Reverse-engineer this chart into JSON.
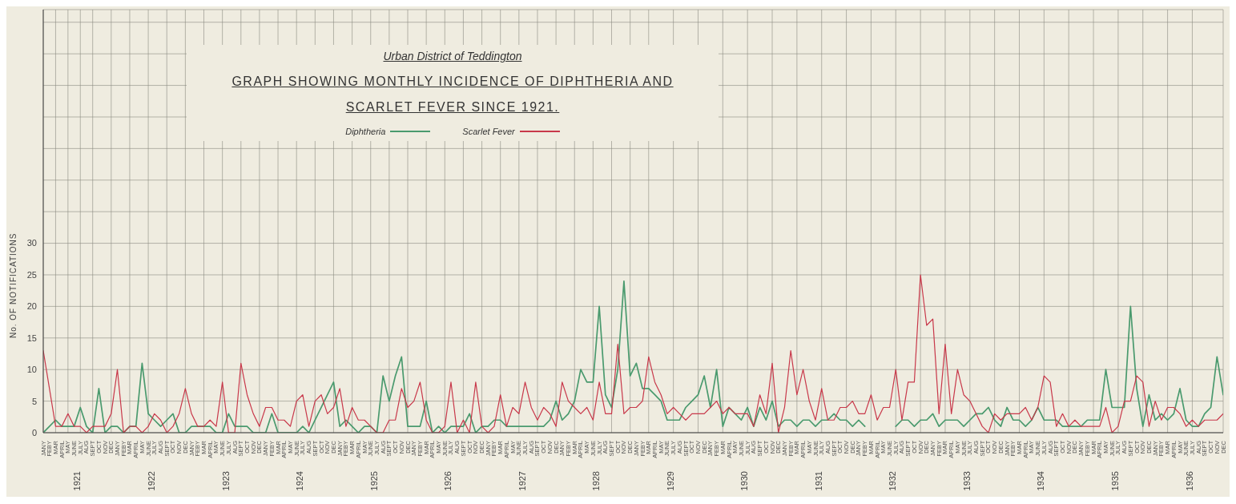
{
  "chart_data": {
    "type": "line",
    "subtitle": "Urban District of Teddington",
    "title": "GRAPH SHOWING MONTHLY INCIDENCE OF DIPHTHERIA AND SCARLET FEVER SINCE 1921.",
    "ylabel": "No. OF NOTIFICATIONS",
    "categories": [
      "JANY",
      "FEBY",
      "MAR",
      "APRIL",
      "MAY",
      "JUNE",
      "JULY",
      "AUG",
      "SEPT",
      "OCT",
      "NOV",
      "DEC",
      "JANY",
      "FEBY",
      "MAR",
      "APRIL",
      "MAY",
      "JUNE",
      "JULY",
      "AUG",
      "SEPT",
      "OCT",
      "NOV",
      "DEC",
      "JANY",
      "FEBY",
      "MAR",
      "APRIL",
      "MAY",
      "JUNE",
      "JULY",
      "AUG",
      "SEPT",
      "OCT",
      "NOV",
      "DEC",
      "JANY",
      "FEBY",
      "MAR",
      "APRIL",
      "MAY",
      "JUNE",
      "JULY",
      "AUG",
      "SEPT",
      "OCT",
      "NOV",
      "DEC",
      "JANY",
      "FEBY",
      "MAR",
      "APRIL",
      "MAY",
      "JUNE",
      "JULY",
      "AUG",
      "SEPT",
      "OCT",
      "NOV",
      "DEC",
      "JANY",
      "FEBY",
      "MAR",
      "APRIL",
      "MAY",
      "JUNE",
      "JULY",
      "AUG",
      "SEPT",
      "OCT",
      "NOV",
      "DEC",
      "JANY",
      "FEBY",
      "MAR",
      "APRIL",
      "MAY",
      "JUNE",
      "JULY",
      "AUG",
      "SEPT",
      "OCT",
      "NOV",
      "DEC",
      "JANY",
      "FEBY",
      "MAR",
      "APRIL",
      "MAY",
      "JUNE",
      "JULY",
      "AUG",
      "SEPT",
      "OCT",
      "NOV",
      "DEC",
      "JANY",
      "FEBY",
      "MAR",
      "APRIL",
      "MAY",
      "JUNE",
      "JULY",
      "AUG",
      "SEPT",
      "OCT",
      "NOV",
      "DEC",
      "JANY",
      "FEBY",
      "MAR",
      "APRIL",
      "MAY",
      "JUNE",
      "JULY",
      "AUG",
      "SEPT",
      "OCT",
      "NOV",
      "DEC",
      "JANY",
      "FEBY",
      "MAR",
      "APRIL",
      "MAY",
      "JUNE",
      "JULY",
      "AUG",
      "SEPT",
      "OCT",
      "NOV",
      "DEC",
      "JANY",
      "FEBY",
      "MAR",
      "APRIL",
      "MAY",
      "JUNE",
      "JULY",
      "AUG",
      "SEPT",
      "OCT",
      "NOV",
      "DEC",
      "JANY",
      "FEBY",
      "MAR",
      "APRIL",
      "MAY",
      "JUNE",
      "JULY",
      "AUG",
      "SEPT",
      "OCT",
      "NOV",
      "DEC",
      "JANY",
      "FEBY",
      "MAR",
      "APRIL",
      "MAY",
      "JUNE",
      "JULY",
      "AUG",
      "SEPT",
      "OCT",
      "NOV",
      "DEC",
      "JANY",
      "FEBY",
      "MAR",
      "APRIL",
      "MAY",
      "JUNE",
      "JULY",
      "AUG",
      "SEPT",
      "OCT",
      "NOV",
      "DEC",
      "JANY",
      "FEBY",
      "MAR",
      "APRIL",
      "MAY",
      "JUNE",
      "JULY",
      "AUG",
      "SEPT",
      "OCT",
      "NOV",
      "DEC"
    ],
    "annotations": [
      "1921",
      "1922",
      "1923",
      "1924",
      "1925",
      "1926",
      "1927",
      "1928",
      "1929",
      "1930",
      "1931",
      "1932",
      "1933",
      "1934",
      "1935",
      "1936"
    ],
    "series": [
      {
        "name": "Diphtheria",
        "color": "#4a9a6e",
        "values": [
          0,
          1,
          2,
          1,
          1,
          1,
          4,
          1,
          0,
          7,
          0,
          1,
          1,
          0,
          1,
          1,
          11,
          3,
          2,
          1,
          2,
          3,
          0,
          0,
          1,
          1,
          1,
          1,
          0,
          0,
          3,
          1,
          1,
          1,
          0,
          0,
          0,
          3,
          0,
          0,
          0,
          0,
          1,
          0,
          2,
          4,
          6,
          8,
          1,
          2,
          1,
          0,
          1,
          1,
          0,
          9,
          5,
          9,
          12,
          1,
          1,
          1,
          5,
          0,
          1,
          0,
          1,
          1,
          1,
          3,
          0,
          1,
          1,
          2,
          2,
          1,
          1,
          1,
          1,
          1,
          1,
          1,
          2,
          5,
          2,
          3,
          5,
          10,
          8,
          8,
          20,
          6,
          4,
          10,
          24,
          9,
          11,
          7,
          7,
          6,
          5,
          2,
          2,
          2,
          4,
          5,
          6,
          9,
          4,
          10,
          1,
          4,
          3,
          2,
          4,
          1,
          4,
          2,
          5,
          1,
          2,
          2,
          1,
          2,
          2,
          1,
          2,
          2,
          3,
          2,
          2,
          1,
          2,
          1,
          null,
          null,
          null,
          null,
          1,
          2,
          2,
          1,
          2,
          2,
          3,
          1,
          2,
          2,
          2,
          1,
          2,
          3,
          3,
          4,
          2,
          1,
          4,
          2,
          2,
          1,
          2,
          4,
          2,
          2,
          2,
          1,
          1,
          1,
          1,
          2,
          2,
          2,
          10,
          4,
          4,
          4,
          20,
          7,
          1,
          6,
          2,
          3,
          2,
          3,
          7,
          2,
          1,
          1,
          3,
          4,
          12,
          6
        ]
      },
      {
        "name": "Scarlet Fever",
        "color": "#c8384a",
        "values": [
          13,
          7,
          1,
          1,
          3,
          1,
          1,
          0,
          1,
          1,
          1,
          3,
          10,
          0,
          1,
          1,
          0,
          1,
          3,
          2,
          0,
          1,
          3,
          7,
          3,
          1,
          1,
          2,
          1,
          8,
          0,
          0,
          11,
          6,
          3,
          1,
          4,
          4,
          2,
          2,
          1,
          5,
          6,
          1,
          5,
          6,
          3,
          4,
          7,
          1,
          4,
          2,
          2,
          1,
          0,
          0,
          2,
          2,
          7,
          4,
          5,
          8,
          2,
          0,
          0,
          1,
          8,
          0,
          2,
          0,
          8,
          1,
          0,
          1,
          6,
          1,
          4,
          3,
          8,
          4,
          2,
          4,
          3,
          1,
          8,
          5,
          4,
          3,
          4,
          2,
          8,
          3,
          3,
          14,
          3,
          4,
          4,
          5,
          12,
          8,
          6,
          3,
          4,
          3,
          2,
          3,
          3,
          3,
          4,
          5,
          3,
          4,
          3,
          3,
          3,
          1,
          6,
          3,
          11,
          0,
          4,
          13,
          6,
          10,
          5,
          2,
          7,
          2,
          2,
          4,
          4,
          5,
          3,
          3,
          6,
          2,
          4,
          4,
          10,
          2,
          8,
          8,
          25,
          17,
          18,
          3,
          14,
          3,
          10,
          6,
          5,
          3,
          1,
          0,
          3,
          2,
          3,
          3,
          3,
          4,
          2,
          4,
          9,
          8,
          1,
          3,
          1,
          2,
          1,
          1,
          1,
          1,
          4,
          0,
          1,
          5,
          5,
          9,
          8,
          1,
          5,
          2,
          4,
          4,
          3,
          1,
          2,
          1,
          2,
          2,
          2,
          3
        ]
      }
    ],
    "ylim": [
      0,
      67
    ],
    "yticks": [
      0,
      5,
      10,
      15,
      20,
      25,
      30,
      {
        "value": 35,
        "label": null
      },
      {
        "value": 40,
        "label": null
      },
      {
        "value": 45,
        "label": null
      },
      {
        "value": 50,
        "label": null
      },
      {
        "value": 55,
        "label": null
      },
      {
        "value": 60,
        "label": null
      },
      {
        "value": 65,
        "label": null
      }
    ],
    "grid": true,
    "legend": "top left",
    "marker": "none",
    "line_style": "solid"
  }
}
